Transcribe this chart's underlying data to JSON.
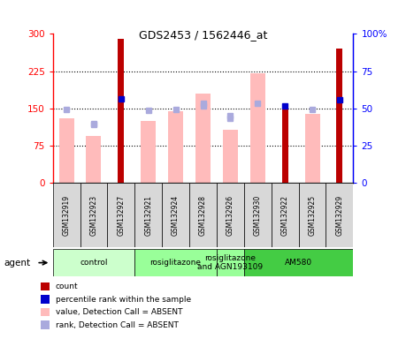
{
  "title": "GDS2453 / 1562446_at",
  "samples": [
    "GSM132919",
    "GSM132923",
    "GSM132927",
    "GSM132921",
    "GSM132924",
    "GSM132928",
    "GSM132926",
    "GSM132930",
    "GSM132922",
    "GSM132925",
    "GSM132929"
  ],
  "count_values": [
    0,
    0,
    290,
    0,
    0,
    0,
    0,
    0,
    150,
    0,
    270
  ],
  "value_absent": [
    130,
    95,
    0,
    125,
    145,
    180,
    108,
    220,
    0,
    140,
    0
  ],
  "rank_absent_sq": [
    0,
    120,
    0,
    0,
    0,
    155,
    130,
    160,
    0,
    0,
    0
  ],
  "percentile_rank_present": [
    0,
    0,
    170,
    0,
    0,
    0,
    0,
    0,
    155,
    0,
    167
  ],
  "percentile_rank_absent": [
    148,
    118,
    0,
    147,
    148,
    160,
    135,
    0,
    0,
    148,
    0
  ],
  "ylim_left": [
    0,
    300
  ],
  "ylim_right": [
    0,
    100
  ],
  "yticks_left": [
    0,
    75,
    150,
    225,
    300
  ],
  "ytick_labels_left": [
    "0",
    "75",
    "150",
    "225",
    "300"
  ],
  "ytick_labels_right": [
    "0",
    "25",
    "50",
    "75",
    "100%"
  ],
  "yticks_right": [
    0,
    25,
    50,
    75,
    100
  ],
  "groups": [
    {
      "label": "control",
      "start": 0,
      "end": 3,
      "color": "#ccffcc"
    },
    {
      "label": "rosiglitazone",
      "start": 3,
      "end": 6,
      "color": "#99ff99"
    },
    {
      "label": "rosiglitazone\nand AGN193109",
      "start": 6,
      "end": 7,
      "color": "#99ff99"
    },
    {
      "label": "AM580",
      "start": 7,
      "end": 11,
      "color": "#44cc44"
    }
  ],
  "color_count": "#bb0000",
  "color_value_absent": "#ffbbbb",
  "color_rank_absent": "#aaaadd",
  "color_percentile": "#0000cc",
  "legend_items": [
    {
      "label": "count",
      "color": "#bb0000"
    },
    {
      "label": "percentile rank within the sample",
      "color": "#0000cc"
    },
    {
      "label": "value, Detection Call = ABSENT",
      "color": "#ffbbbb"
    },
    {
      "label": "rank, Detection Call = ABSENT",
      "color": "#aaaadd"
    }
  ]
}
